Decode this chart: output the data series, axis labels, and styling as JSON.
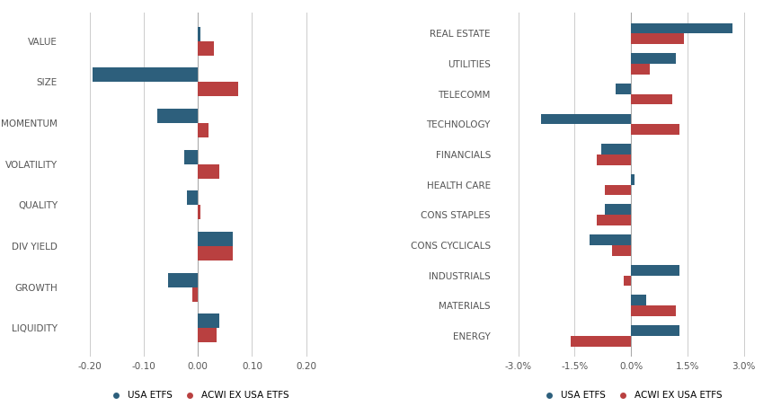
{
  "left": {
    "categories": [
      "VALUE",
      "SIZE",
      "MOMENTUM",
      "VOLATILITY",
      "QUALITY",
      "DIV YIELD",
      "GROWTH",
      "LIQUIDITY"
    ],
    "usa": [
      0.005,
      -0.195,
      -0.075,
      -0.025,
      -0.02,
      0.065,
      -0.055,
      0.04
    ],
    "acwi": [
      0.03,
      0.075,
      0.02,
      0.04,
      0.005,
      0.065,
      -0.01,
      0.035
    ],
    "xlim": [
      -0.25,
      0.25
    ],
    "xticks": [
      -0.2,
      -0.1,
      0.0,
      0.1,
      0.2
    ],
    "xtick_labels": [
      "-0.20",
      "-0.10",
      "0.00",
      "0.10",
      "0.20"
    ]
  },
  "right": {
    "categories": [
      "REAL ESTATE",
      "UTILITIES",
      "TELECOMM",
      "TECHNOLOGY",
      "FINANCIALS",
      "HEALTH CARE",
      "CONS STAPLES",
      "CONS CYCLICALS",
      "INDUSTRIALS",
      "MATERIALS",
      "ENERGY"
    ],
    "usa": [
      0.027,
      0.012,
      -0.004,
      -0.024,
      -0.008,
      0.001,
      -0.007,
      -0.011,
      0.013,
      0.004,
      0.013
    ],
    "acwi": [
      0.014,
      0.005,
      0.011,
      0.013,
      -0.009,
      -0.007,
      -0.009,
      -0.005,
      -0.002,
      0.012,
      -0.016
    ],
    "xlim": [
      -0.036,
      0.036
    ],
    "xticks": [
      -0.03,
      -0.015,
      0.0,
      0.015,
      0.03
    ],
    "xtick_labels": [
      "-3.0%",
      "-1.5%",
      "0.0%",
      "1.5%",
      "3.0%"
    ]
  },
  "color_usa": "#2d5f7c",
  "color_acwi": "#b94040",
  "bar_height": 0.35,
  "legend_usa": "USA ETFS",
  "legend_acwi": "ACWI EX USA ETFS",
  "background_color": "#ffffff",
  "font_color": "#555555"
}
